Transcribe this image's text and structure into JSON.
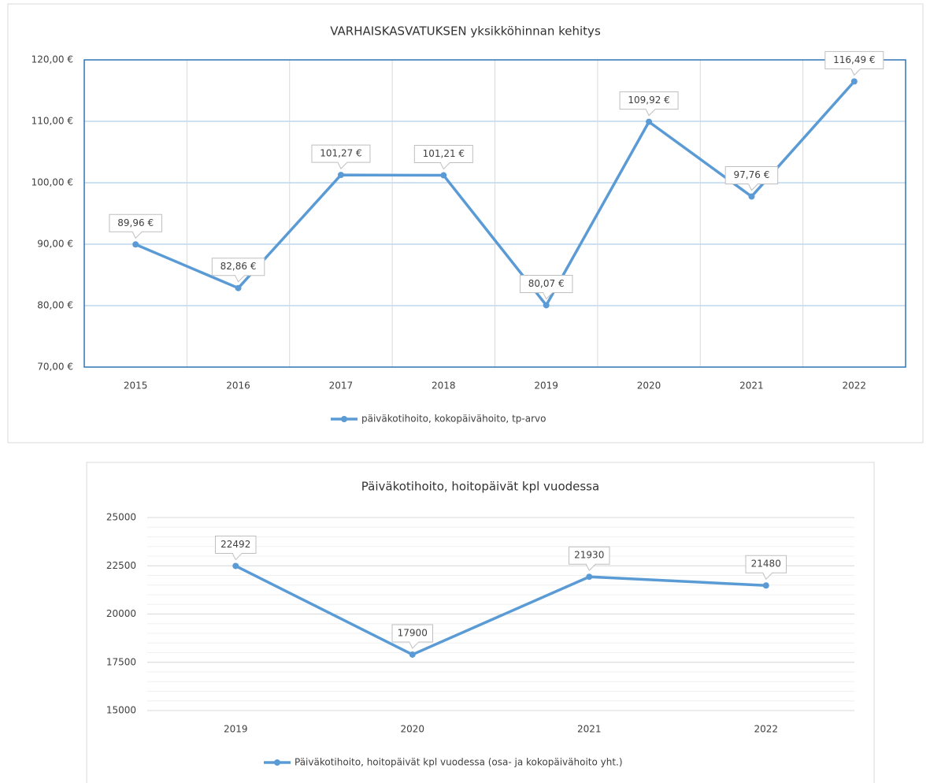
{
  "chart_data": [
    {
      "type": "line",
      "title": "VARHAISKASVATUKSEN yksikköhinnan kehitys",
      "categories": [
        "2015",
        "2016",
        "2017",
        "2018",
        "2019",
        "2020",
        "2021",
        "2022"
      ],
      "series": [
        {
          "name": "päiväkotihoito, kokopäivähoito, tp-arvo",
          "color": "#5b9bd5",
          "values": [
            89.96,
            82.86,
            101.27,
            101.21,
            80.07,
            109.92,
            97.76,
            116.49
          ],
          "value_labels": [
            "89,96 €",
            "82,86 €",
            "101,27 €",
            "101,21 €",
            "80,07 €",
            "109,92 €",
            "97,76 €",
            "116,49 €"
          ]
        }
      ],
      "ylim": [
        70,
        120
      ],
      "yticks": [
        {
          "value": 70,
          "label": "70,00 €"
        },
        {
          "value": 80,
          "label": "80,00 €"
        },
        {
          "value": 90,
          "label": "90,00 €"
        },
        {
          "value": 100,
          "label": "100,00 €"
        },
        {
          "value": 110,
          "label": "110,00 €"
        },
        {
          "value": 120,
          "label": "120,00 €"
        }
      ],
      "grid": true,
      "vertical_grid": true,
      "legend": "bottom"
    },
    {
      "type": "line",
      "title": "Päiväkotihoito, hoitopäivät kpl vuodessa",
      "categories": [
        "2019",
        "2020",
        "2021",
        "2022"
      ],
      "series": [
        {
          "name": "Päiväkotihoito, hoitopäivät kpl vuodessa (osa- ja kokopäivähoito yht.)",
          "color": "#5b9bd5",
          "values": [
            22492,
            17900,
            21930,
            21480
          ]
        }
      ],
      "ylim": [
        15000,
        25000
      ],
      "yticks": [
        15000,
        17500,
        20000,
        22500,
        25000
      ],
      "minor_grid_step": 500,
      "grid": true,
      "vertical_grid": false,
      "legend": "bottom"
    }
  ]
}
